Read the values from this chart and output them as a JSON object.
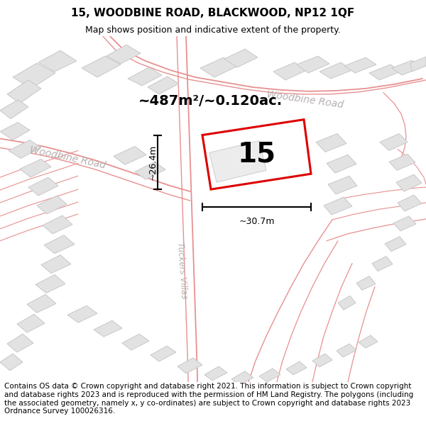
{
  "title": "15, WOODBINE ROAD, BLACKWOOD, NP12 1QF",
  "subtitle": "Map shows position and indicative extent of the property.",
  "footer": "Contains OS data © Crown copyright and database right 2021. This information is subject to Crown copyright and database rights 2023 and is reproduced with the permission of HM Land Registry. The polygons (including the associated geometry, namely x, y co-ordinates) are subject to Crown copyright and database rights 2023 Ordnance Survey 100026316.",
  "area_label": "~487m²/~0.120ac.",
  "number_label": "15",
  "dim_width": "~30.7m",
  "dim_height": "~26.4m",
  "road_label_wb1": "Woodbine Road",
  "road_label_wb2": "Woodbine Road",
  "road_label_tv": "Tuckers Villas",
  "map_bg": "#f7f7f7",
  "building_fill": "#e2e2e2",
  "building_edge": "#c8c8c8",
  "road_line_color": "#e89090",
  "highlight_color": "#dd0000",
  "title_fontsize": 11,
  "subtitle_fontsize": 9,
  "footer_fontsize": 7.5,
  "area_fontsize": 14,
  "number_fontsize": 28,
  "road_label_fontsize": 10,
  "dim_fontsize": 9
}
